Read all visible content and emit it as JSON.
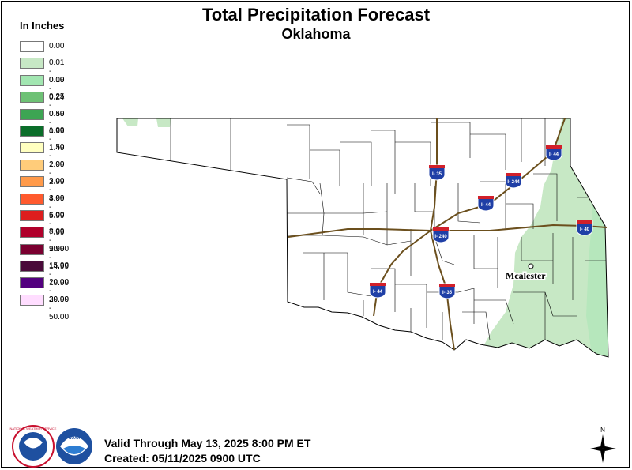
{
  "title": "Total Precipitation Forecast",
  "subtitle": "Oklahoma",
  "legend": {
    "title": "In Inches",
    "items": [
      {
        "label": "0.00",
        "color": "#ffffff"
      },
      {
        "label": "0.01 - 0.09",
        "color": "#c7e8c5"
      },
      {
        "label": "0.10 - 0.24",
        "color": "#a2e6b1"
      },
      {
        "label": "0.25 - 0.49",
        "color": "#6ec175"
      },
      {
        "label": "0.50 - 0.99",
        "color": "#3da553"
      },
      {
        "label": "1.00 - 1.49",
        "color": "#0b6e2a"
      },
      {
        "label": "1.50 - 1.99",
        "color": "#ffffc0"
      },
      {
        "label": "2.00 - 2.99",
        "color": "#ffcc7a"
      },
      {
        "label": "3.00 - 3.99",
        "color": "#ff9a4a"
      },
      {
        "label": "4.00 - 5.99",
        "color": "#ff5a2e"
      },
      {
        "label": "6.00 - 7.99",
        "color": "#dd1e1e"
      },
      {
        "label": "8.00 - 9.99",
        "color": "#b0002b"
      },
      {
        "label": "10.00 - 14.99",
        "color": "#7a0030"
      },
      {
        "label": "15.00 - 19.99",
        "color": "#4a0a3a"
      },
      {
        "label": "20.00 - 29.99",
        "color": "#53007f"
      },
      {
        "label": "30.00 - 50.00",
        "color": "#ffddff"
      }
    ]
  },
  "map": {
    "city": "Mcalester",
    "shields": [
      {
        "label": "I- 35"
      },
      {
        "label": "I- 244"
      },
      {
        "label": "I- 44"
      },
      {
        "label": "I- 44"
      },
      {
        "label": "I- 240"
      },
      {
        "label": "I- 40"
      },
      {
        "label": "I- 44"
      },
      {
        "label": "I- 35"
      }
    ]
  },
  "footer": {
    "valid": "Valid Through May 13, 2025 8:00 PM ET",
    "created": "Created: 05/11/2025 0900 UTC"
  },
  "logos": {
    "nws_text": "NATIONAL WEATHER SERVICE",
    "noaa_text": "NOAA"
  },
  "compass_letter": "N"
}
